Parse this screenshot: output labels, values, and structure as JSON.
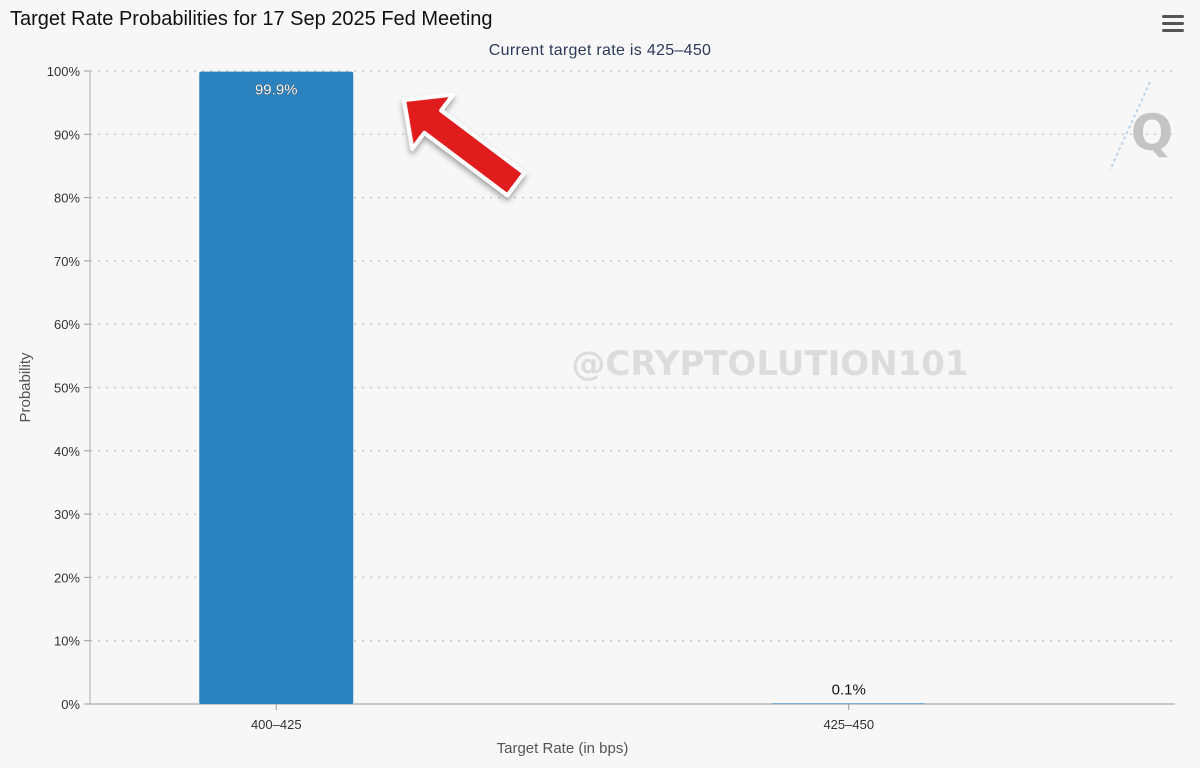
{
  "chart_data": {
    "type": "bar",
    "title": "Target Rate Probabilities for 17 Sep 2025 Fed Meeting",
    "subtitle": "Current target rate is 425–450",
    "xlabel": "Target Rate (in bps)",
    "ylabel": "Probability",
    "categories": [
      "400–425",
      "425–450"
    ],
    "values": [
      99.9,
      0.1
    ],
    "data_labels": [
      "99.9%",
      "0.1%"
    ],
    "ylim": [
      0,
      100
    ],
    "y_ticks": [
      0,
      10,
      20,
      30,
      40,
      50,
      60,
      70,
      80,
      90,
      100
    ],
    "y_tick_suffix": "%",
    "grid": true,
    "bar_color": "#2a82bf"
  },
  "annotations": {
    "watermark_text": "@CRYPTOLUTION101",
    "logo_letter": "Q",
    "arrow_color": "#e11d1d"
  },
  "icons": {
    "menu": "hamburger-menu-icon"
  }
}
